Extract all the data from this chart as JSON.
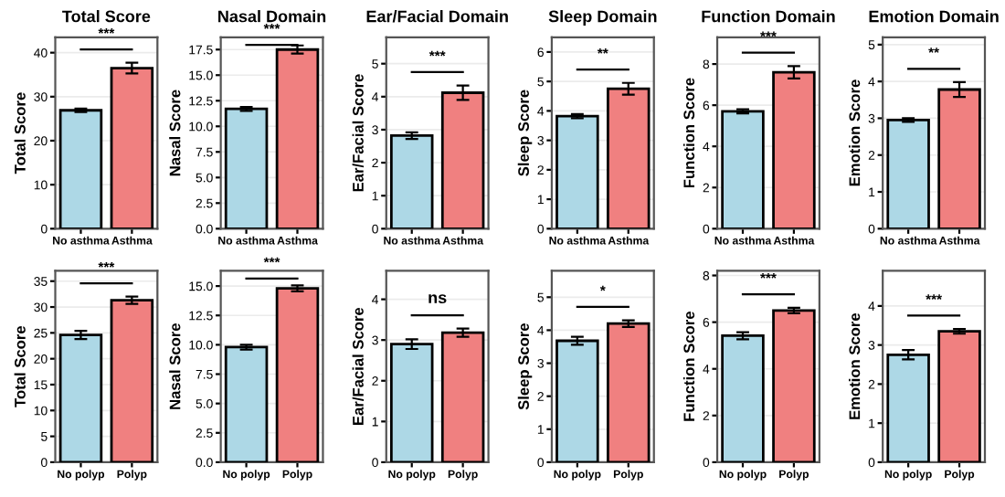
{
  "chart_data": [
    {
      "type": "bar",
      "title": "Total Score",
      "ylabel": "Total Score",
      "categories": [
        "No asthma",
        "Asthma"
      ],
      "values": [
        26.9,
        36.5
      ],
      "errors": [
        0.4,
        1.2
      ],
      "colors": [
        "#add8e6",
        "#f08080"
      ],
      "ylim": [
        0,
        43.5
      ],
      "yticks": [
        0,
        10,
        20,
        30,
        40
      ],
      "grid": "y",
      "annotations": [
        "***"
      ]
    },
    {
      "type": "bar",
      "title": "Nasal Domain",
      "ylabel": "Nasal Score",
      "categories": [
        "No asthma",
        "Asthma"
      ],
      "values": [
        11.7,
        17.5
      ],
      "errors": [
        0.2,
        0.4
      ],
      "colors": [
        "#add8e6",
        "#f08080"
      ],
      "ylim": [
        0,
        18.7
      ],
      "yticks": [
        {
          "value": 0,
          "label": "0.0"
        },
        2.5,
        {
          "value": 5,
          "label": "5.0"
        },
        7.5,
        {
          "value": 10,
          "label": "10.0"
        },
        12.5,
        {
          "value": 15,
          "label": "15.0"
        },
        17.5
      ],
      "grid": "y",
      "annotations": [
        "***"
      ]
    },
    {
      "type": "bar",
      "title": "Ear/Facial Domain",
      "ylabel": "Ear/Facial Score",
      "categories": [
        "No asthma",
        "Asthma"
      ],
      "values": [
        2.82,
        4.12
      ],
      "errors": [
        0.1,
        0.22
      ],
      "colors": [
        "#add8e6",
        "#f08080"
      ],
      "ylim": [
        0,
        5.8
      ],
      "yticks": [
        0,
        1,
        2,
        3,
        4,
        5
      ],
      "grid": "y",
      "annotations": [
        "***"
      ]
    },
    {
      "type": "bar",
      "title": "Sleep Domain",
      "ylabel": "Sleep Score",
      "categories": [
        "No asthma",
        "Asthma"
      ],
      "values": [
        3.82,
        4.75
      ],
      "errors": [
        0.07,
        0.2
      ],
      "colors": [
        "#add8e6",
        "#f08080"
      ],
      "ylim": [
        0,
        6.5
      ],
      "yticks": [
        0,
        1,
        2,
        3,
        4,
        5,
        6
      ],
      "grid": "y",
      "annotations": [
        "**"
      ]
    },
    {
      "type": "bar",
      "title": "Function Domain",
      "ylabel": "Function Score",
      "categories": [
        "No asthma",
        "Asthma"
      ],
      "values": [
        5.7,
        7.6
      ],
      "errors": [
        0.1,
        0.3
      ],
      "colors": [
        "#add8e6",
        "#f08080"
      ],
      "ylim": [
        0,
        9.3
      ],
      "yticks": [
        0,
        2,
        4,
        6,
        8
      ],
      "grid": "y",
      "annotations": [
        "***"
      ]
    },
    {
      "type": "bar",
      "title": "Emotion Domain",
      "ylabel": "Emotion Score",
      "categories": [
        "No asthma",
        "Asthma"
      ],
      "values": [
        2.95,
        3.78
      ],
      "errors": [
        0.05,
        0.2
      ],
      "colors": [
        "#add8e6",
        "#f08080"
      ],
      "ylim": [
        0,
        5.2
      ],
      "yticks": [
        0,
        1,
        2,
        3,
        4,
        5
      ],
      "grid": "y",
      "annotations": [
        "**"
      ]
    },
    {
      "type": "bar",
      "ylabel": "Total Score",
      "categories": [
        "No polyp",
        "Polyp"
      ],
      "values": [
        24.6,
        31.3
      ],
      "errors": [
        0.8,
        0.7
      ],
      "colors": [
        "#add8e6",
        "#f08080"
      ],
      "ylim": [
        0,
        37
      ],
      "yticks": [
        0,
        5,
        10,
        15,
        20,
        25,
        30,
        35
      ],
      "grid": "y",
      "annotations": [
        "***"
      ]
    },
    {
      "type": "bar",
      "ylabel": "Nasal Score",
      "categories": [
        "No polyp",
        "Polyp"
      ],
      "values": [
        9.8,
        14.8
      ],
      "errors": [
        0.2,
        0.25
      ],
      "colors": [
        "#add8e6",
        "#f08080"
      ],
      "ylim": [
        0,
        16.3
      ],
      "yticks": [
        {
          "value": 0,
          "label": "0.0"
        },
        2.5,
        {
          "value": 5,
          "label": "5.0"
        },
        7.5,
        {
          "value": 10,
          "label": "10.0"
        },
        12.5,
        {
          "value": 15,
          "label": "15.0"
        }
      ],
      "grid": "y",
      "annotations": [
        "***"
      ]
    },
    {
      "type": "bar",
      "ylabel": "Ear/Facial Score",
      "categories": [
        "No polyp",
        "Polyp"
      ],
      "values": [
        2.9,
        3.18
      ],
      "errors": [
        0.12,
        0.1
      ],
      "colors": [
        "#add8e6",
        "#f08080"
      ],
      "ylim": [
        0,
        4.7
      ],
      "yticks": [
        0,
        1,
        2,
        3,
        4
      ],
      "grid": "y",
      "annotations": [
        "ns"
      ]
    },
    {
      "type": "bar",
      "ylabel": "Sleep Score",
      "categories": [
        "No polyp",
        "Polyp"
      ],
      "values": [
        3.68,
        4.2
      ],
      "errors": [
        0.12,
        0.1
      ],
      "colors": [
        "#add8e6",
        "#f08080"
      ],
      "ylim": [
        0,
        5.8
      ],
      "yticks": [
        0,
        1,
        2,
        3,
        4,
        5
      ],
      "grid": "y",
      "annotations": [
        "*"
      ]
    },
    {
      "type": "bar",
      "ylabel": "Function Score",
      "categories": [
        "No polyp",
        "Polyp"
      ],
      "values": [
        5.42,
        6.5
      ],
      "errors": [
        0.15,
        0.12
      ],
      "colors": [
        "#add8e6",
        "#f08080"
      ],
      "ylim": [
        0,
        8.2
      ],
      "yticks": [
        0,
        2,
        4,
        6,
        8
      ],
      "grid": "y",
      "annotations": [
        "***"
      ]
    },
    {
      "type": "bar",
      "ylabel": "Emotion Score",
      "categories": [
        "No polyp",
        "Polyp"
      ],
      "values": [
        2.75,
        3.35
      ],
      "errors": [
        0.12,
        0.06
      ],
      "colors": [
        "#add8e6",
        "#f08080"
      ],
      "ylim": [
        0,
        4.9
      ],
      "yticks": [
        0,
        1,
        2,
        3,
        4
      ],
      "grid": "y",
      "annotations": [
        "***"
      ]
    }
  ]
}
